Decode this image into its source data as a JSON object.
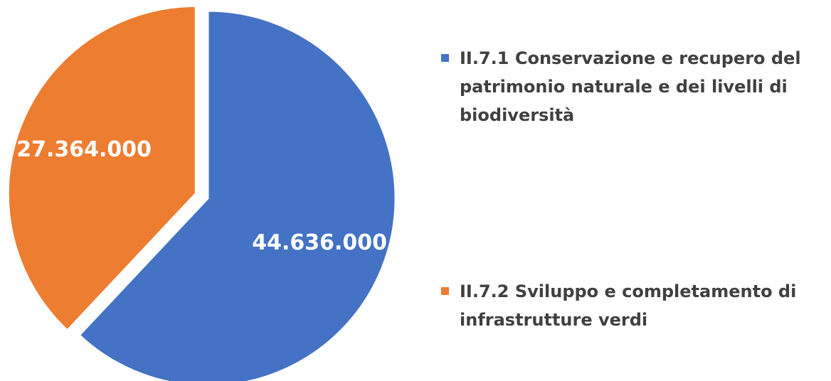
{
  "chart_data": {
    "type": "pie",
    "slices": [
      {
        "label": "II.7.1 Conservazione e recupero del patrimonio naturale e dei livelli di biodiversità",
        "value": 44636000,
        "value_label": "44.636.000",
        "color": "#4472C4"
      },
      {
        "label": "II.7.2 Sviluppo e completamento di infrastrutture verdi",
        "value": 27364000,
        "value_label": "27.364.000",
        "color": "#ED7D31",
        "exploded": true
      }
    ],
    "legend_position": "right"
  }
}
